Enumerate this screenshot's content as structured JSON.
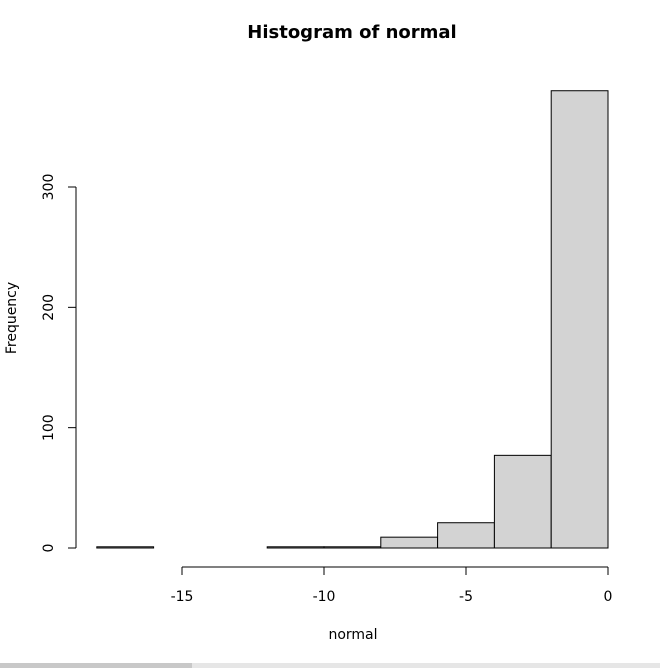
{
  "chart_data": {
    "type": "bar",
    "title": "Histogram of normal",
    "xlabel": "normal",
    "ylabel": "Frequency",
    "bins": [
      {
        "from": -18,
        "to": -16,
        "count": 1
      },
      {
        "from": -16,
        "to": -14,
        "count": 0
      },
      {
        "from": -14,
        "to": -12,
        "count": 0
      },
      {
        "from": -12,
        "to": -10,
        "count": 1
      },
      {
        "from": -10,
        "to": -8,
        "count": 1
      },
      {
        "from": -8,
        "to": -6,
        "count": 9
      },
      {
        "from": -6,
        "to": -4,
        "count": 21
      },
      {
        "from": -4,
        "to": -2,
        "count": 77
      },
      {
        "from": -2,
        "to": 0,
        "count": 380
      }
    ],
    "xticks": [
      -15,
      -10,
      -5,
      0
    ],
    "yticks": [
      0,
      100,
      200,
      300
    ],
    "xlim": [
      -18,
      0
    ],
    "ylim": [
      0,
      380
    ],
    "bar_color": "#d3d3d3",
    "grid": false
  }
}
